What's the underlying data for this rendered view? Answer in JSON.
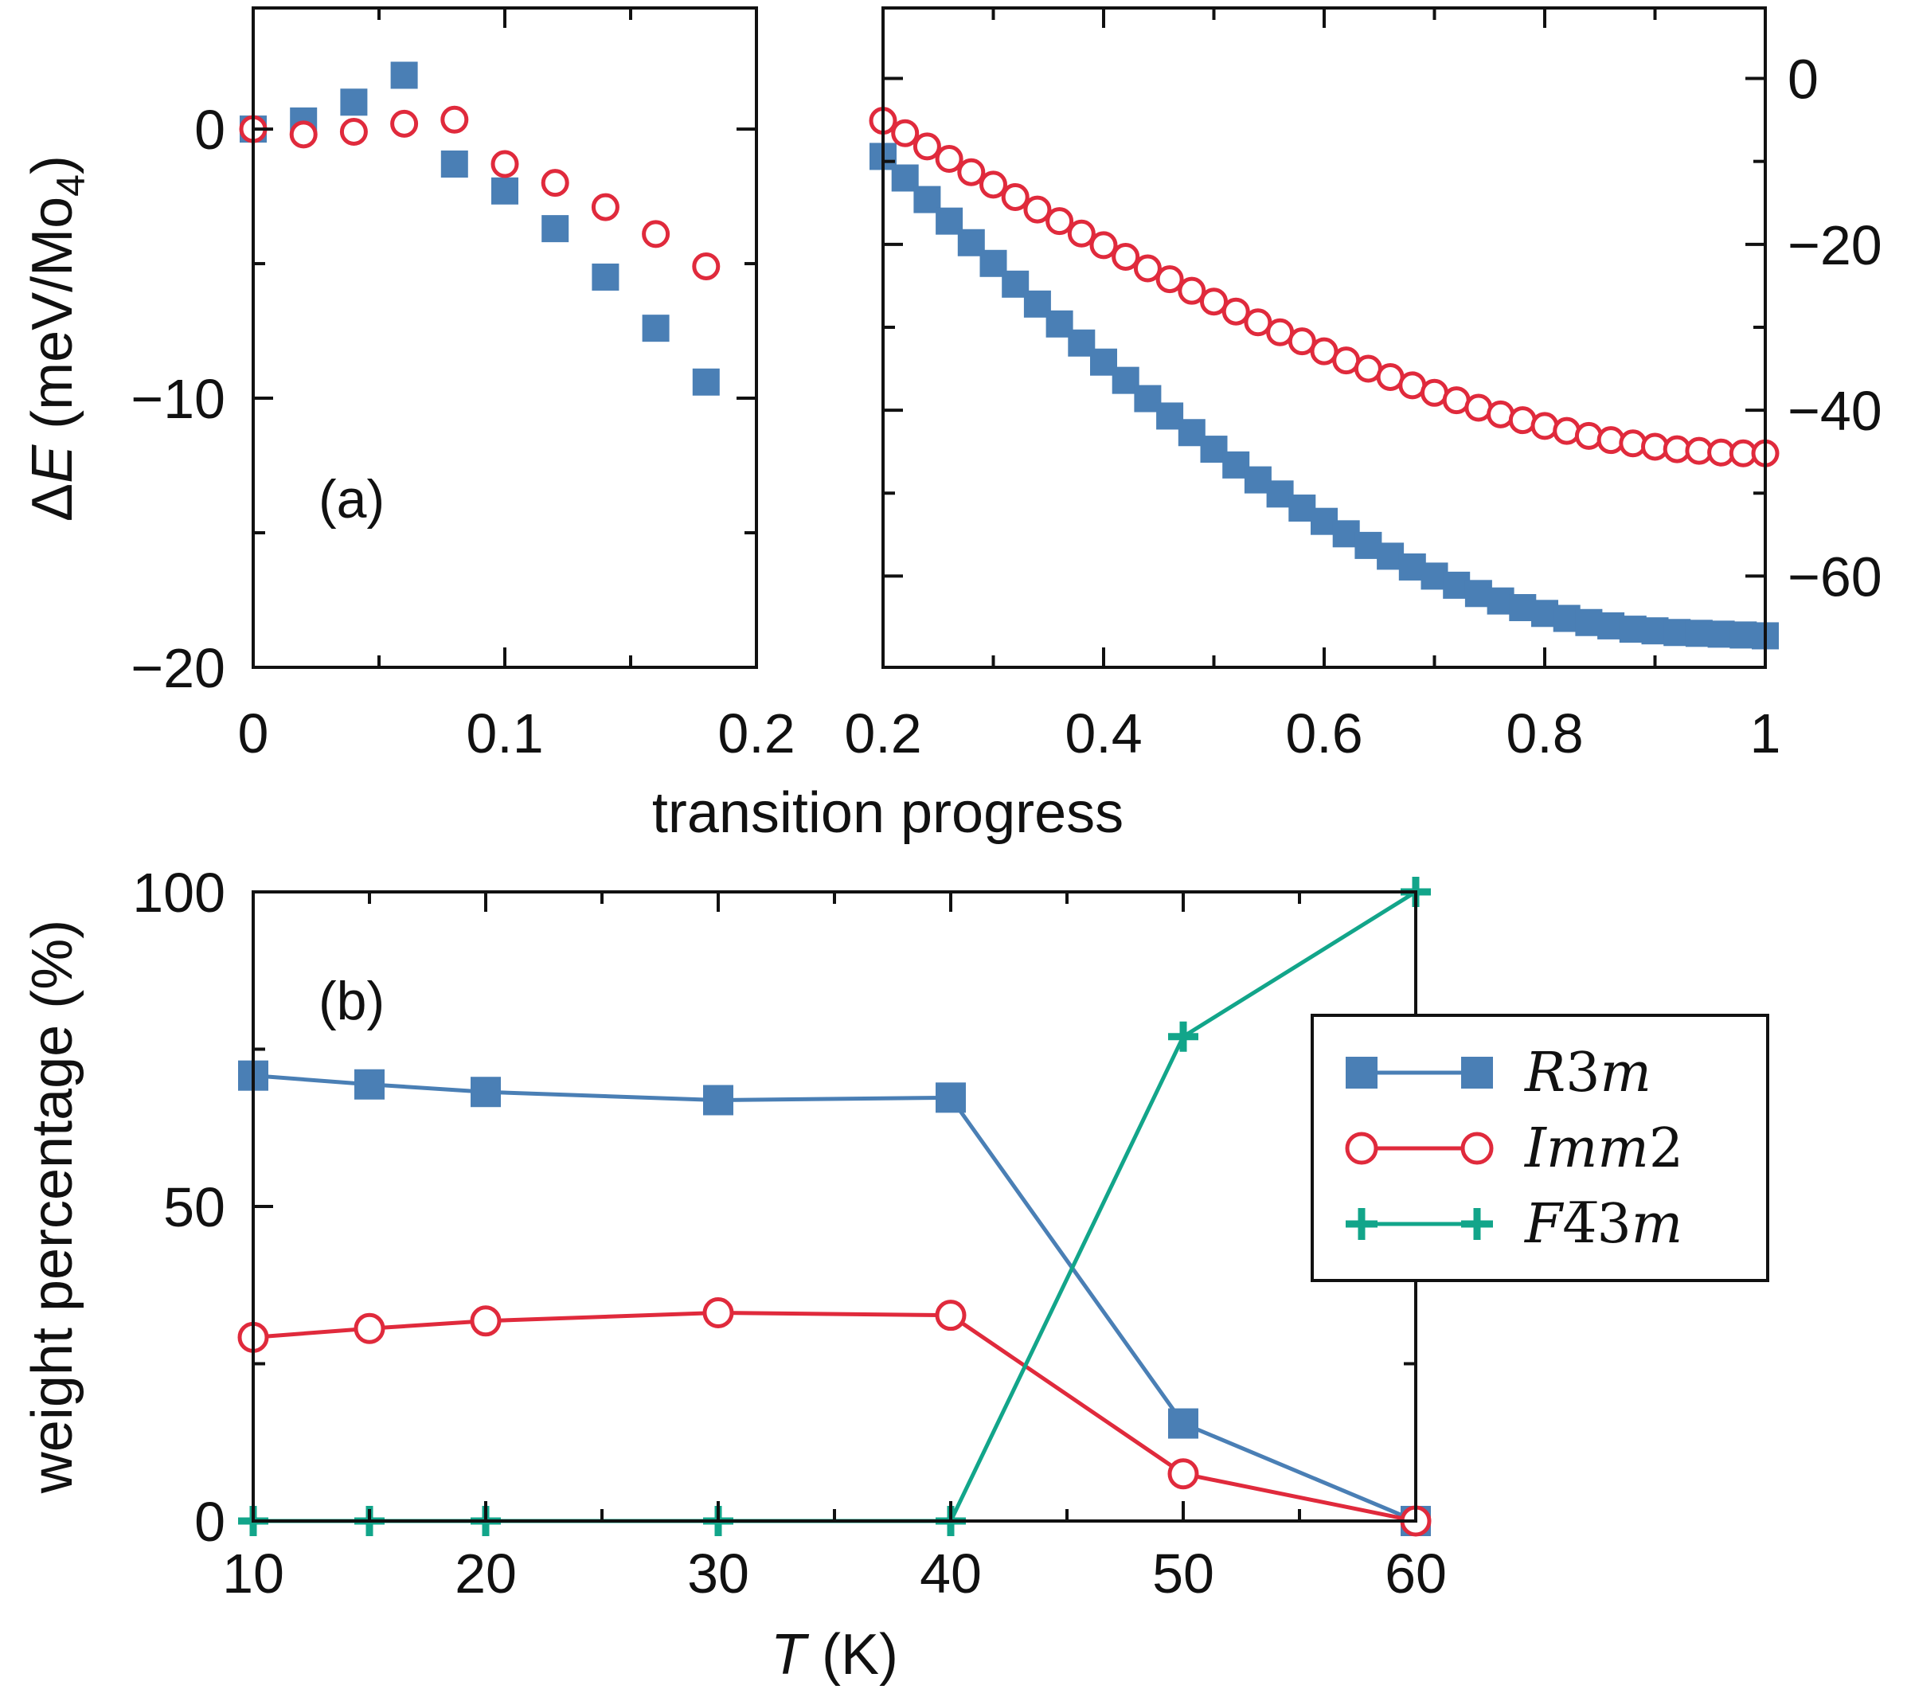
{
  "colors": {
    "r3m": "#4a7fb5",
    "imm2": "#e02a3c",
    "f43m": "#12a58a",
    "axis": "#111111"
  },
  "chart_data": [
    {
      "id": "a-left",
      "type": "scatter",
      "panel_label": "(a)",
      "ylabel_prefix": "Δ",
      "ylabel_var": "E",
      "ylabel_unit": " (meV/Mo",
      "ylabel_sub": "4",
      "ylabel_close": ")",
      "xlim": [
        0,
        0.2
      ],
      "ylim": [
        -20,
        4.5
      ],
      "xticks": [
        0,
        0.1,
        0.2
      ],
      "xtick_labels": [
        "0",
        "0.1",
        "0.2"
      ],
      "xminor": [
        0.05,
        0.15
      ],
      "yticks": [
        0,
        -10,
        -20
      ],
      "ytick_labels": [
        "0",
        "−10",
        "−20"
      ],
      "yminor": [
        -5,
        -15
      ],
      "series": [
        {
          "name": "R3m",
          "marker": "square",
          "color_key": "r3m",
          "x": [
            0,
            0.02,
            0.04,
            0.06,
            0.08,
            0.1,
            0.12,
            0.14,
            0.16,
            0.18
          ],
          "y": [
            0,
            0.3,
            1.0,
            2.0,
            -1.3,
            -2.3,
            -3.7,
            -5.5,
            -7.4,
            -9.4
          ]
        },
        {
          "name": "Imm2",
          "marker": "circle",
          "color_key": "imm2",
          "x": [
            0,
            0.02,
            0.04,
            0.06,
            0.08,
            0.1,
            0.12,
            0.14,
            0.16,
            0.18
          ],
          "y": [
            0,
            -0.2,
            -0.1,
            0.2,
            0.35,
            -1.3,
            -2.0,
            -2.9,
            -3.9,
            -5.1
          ]
        }
      ]
    },
    {
      "id": "a-right",
      "type": "scatter",
      "xlim": [
        0.2,
        1
      ],
      "ylim": [
        -71,
        8.5
      ],
      "xticks": [
        0.2,
        0.4,
        0.6,
        0.8,
        1
      ],
      "xtick_labels": [
        "0.2",
        "0.4",
        "0.6",
        "0.8",
        "1"
      ],
      "xminor": [
        0.3,
        0.5,
        0.7,
        0.9
      ],
      "yticks": [
        0,
        -20,
        -40,
        -60
      ],
      "ytick_labels": [
        "0",
        "−20",
        "−40",
        "−60"
      ],
      "yminor": [
        -10,
        -30,
        -50
      ],
      "series": [
        {
          "name": "R3m",
          "marker": "square",
          "color_key": "r3m",
          "x": [
            0.2,
            0.22,
            0.24,
            0.26,
            0.28,
            0.3,
            0.32,
            0.34,
            0.36,
            0.38,
            0.4,
            0.42,
            0.44,
            0.46,
            0.48,
            0.5,
            0.52,
            0.54,
            0.56,
            0.58,
            0.6,
            0.62,
            0.64,
            0.66,
            0.68,
            0.7,
            0.72,
            0.74,
            0.76,
            0.78,
            0.8,
            0.82,
            0.84,
            0.86,
            0.88,
            0.9,
            0.92,
            0.94,
            0.96,
            0.98,
            1.0
          ],
          "y": [
            -9.4,
            -12.0,
            -14.6,
            -17.2,
            -19.8,
            -22.3,
            -24.8,
            -27.2,
            -29.6,
            -31.9,
            -34.2,
            -36.4,
            -38.6,
            -40.7,
            -42.7,
            -44.7,
            -46.6,
            -48.4,
            -50.1,
            -51.8,
            -53.4,
            -54.9,
            -56.3,
            -57.6,
            -58.9,
            -60.0,
            -61.1,
            -62.1,
            -63.0,
            -63.8,
            -64.5,
            -65.1,
            -65.6,
            -66.0,
            -66.4,
            -66.6,
            -66.8,
            -66.9,
            -67.0,
            -67.1,
            -67.2
          ]
        },
        {
          "name": "Imm2",
          "marker": "circle",
          "color_key": "imm2",
          "x": [
            0.2,
            0.22,
            0.24,
            0.26,
            0.28,
            0.3,
            0.32,
            0.34,
            0.36,
            0.38,
            0.4,
            0.42,
            0.44,
            0.46,
            0.48,
            0.5,
            0.52,
            0.54,
            0.56,
            0.58,
            0.6,
            0.62,
            0.64,
            0.66,
            0.68,
            0.7,
            0.72,
            0.74,
            0.76,
            0.78,
            0.8,
            0.82,
            0.84,
            0.86,
            0.88,
            0.9,
            0.92,
            0.94,
            0.96,
            0.98,
            1.0
          ],
          "y": [
            -5.1,
            -6.6,
            -8.2,
            -9.7,
            -11.3,
            -12.8,
            -14.3,
            -15.8,
            -17.2,
            -18.7,
            -20.1,
            -21.5,
            -22.9,
            -24.2,
            -25.6,
            -26.9,
            -28.1,
            -29.4,
            -30.6,
            -31.7,
            -32.9,
            -34.0,
            -35.0,
            -36.0,
            -37.0,
            -37.9,
            -38.8,
            -39.7,
            -40.5,
            -41.2,
            -41.9,
            -42.5,
            -43.1,
            -43.6,
            -44.0,
            -44.4,
            -44.7,
            -44.9,
            -45.1,
            -45.2,
            -45.2
          ]
        }
      ]
    },
    {
      "id": "b",
      "type": "line",
      "panel_label": "(b)",
      "xlabel_var": "T",
      "xlabel_unit": " (K)",
      "ylabel": "weight percentage (%)",
      "xlim": [
        10,
        60
      ],
      "ylim": [
        0,
        100
      ],
      "xticks": [
        10,
        20,
        30,
        40,
        50,
        60
      ],
      "xtick_labels": [
        "10",
        "20",
        "30",
        "40",
        "50",
        "60"
      ],
      "xminor": [
        15,
        25,
        35,
        45,
        55
      ],
      "yticks": [
        0,
        50,
        100
      ],
      "ytick_labels": [
        "0",
        "50",
        "100"
      ],
      "yminor": [
        25,
        75
      ],
      "legend_position": "upper-right",
      "series": [
        {
          "name": "R3m",
          "legend_pre": "R",
          "legend_mid": "3",
          "legend_post": "m",
          "marker": "square",
          "color_key": "r3m",
          "x": [
            10,
            15,
            20,
            30,
            40,
            50,
            60
          ],
          "y": [
            70.8,
            69.4,
            68.2,
            66.9,
            67.3,
            15.5,
            0
          ]
        },
        {
          "name": "Imm2",
          "legend_pre": "Imm",
          "legend_mid": "2",
          "legend_post": "",
          "marker": "circle",
          "color_key": "imm2",
          "x": [
            10,
            15,
            20,
            30,
            40,
            50,
            60
          ],
          "y": [
            29.2,
            30.6,
            31.8,
            33.1,
            32.7,
            7.5,
            0
          ]
        },
        {
          "name": "F-43m",
          "legend_pre": "F",
          "legend_mid": "4̅3",
          "legend_post": "m",
          "marker": "plus",
          "color_key": "f43m",
          "x": [
            10,
            15,
            20,
            30,
            40,
            50,
            60
          ],
          "y": [
            0,
            0,
            0,
            0,
            0,
            77,
            100
          ]
        }
      ]
    }
  ],
  "shared_xlabel": "transition progress"
}
